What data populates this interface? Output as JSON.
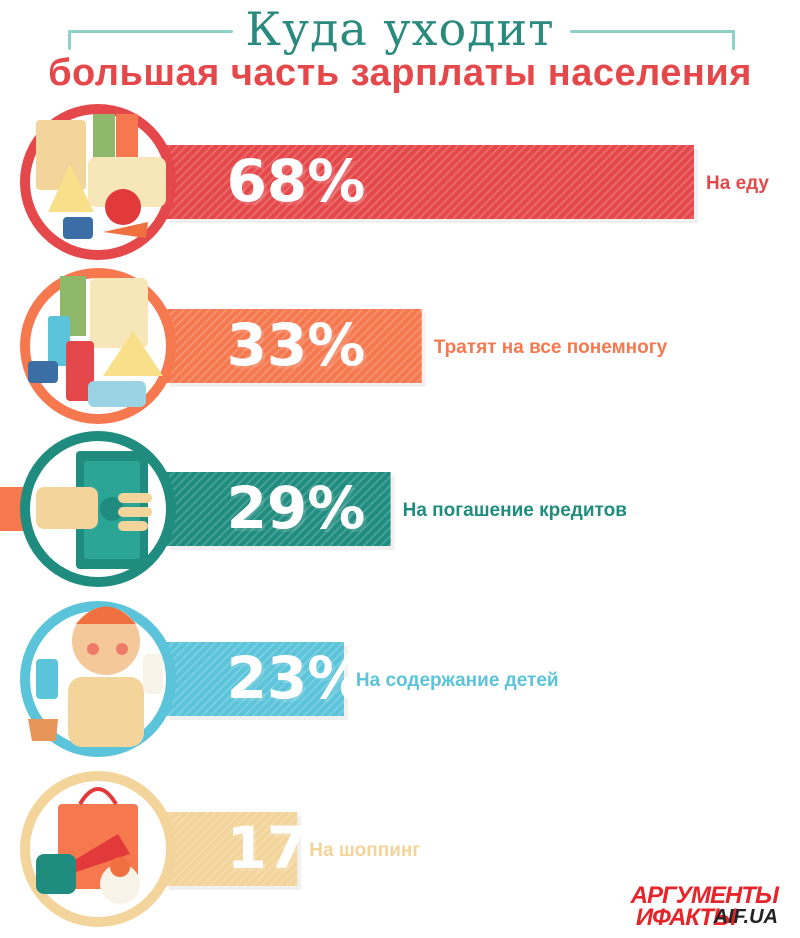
{
  "title": {
    "line1": "Куда уходит",
    "line2": "большая часть зарплаты населения"
  },
  "chart_data": {
    "type": "bar",
    "orientation": "horizontal",
    "title": "Куда уходит большая часть зарплаты населения",
    "categories": [
      "На еду",
      "Тратят на все понемногу",
      "На погашение кредитов",
      "На содержание детей",
      "На шоппинг"
    ],
    "values": [
      68,
      33,
      29,
      23,
      17
    ],
    "value_labels": [
      "68%",
      "33%",
      "29%",
      "23%",
      "17%"
    ],
    "unit": "%",
    "colors": [
      "#e5484a",
      "#f5784e",
      "#1f8c7f",
      "#5bc4da",
      "#f3d49a"
    ],
    "icons": [
      "food-icon",
      "groceries-icon",
      "cash-in-hand-icon",
      "baby-icon",
      "shopping-bag-icon"
    ],
    "grid": false,
    "xlim": [
      0,
      68
    ]
  },
  "logo": {
    "line1": "АРГУМЕНТЫ",
    "line2": "ИФАКТЫ",
    "line3": "AIF.UA"
  }
}
